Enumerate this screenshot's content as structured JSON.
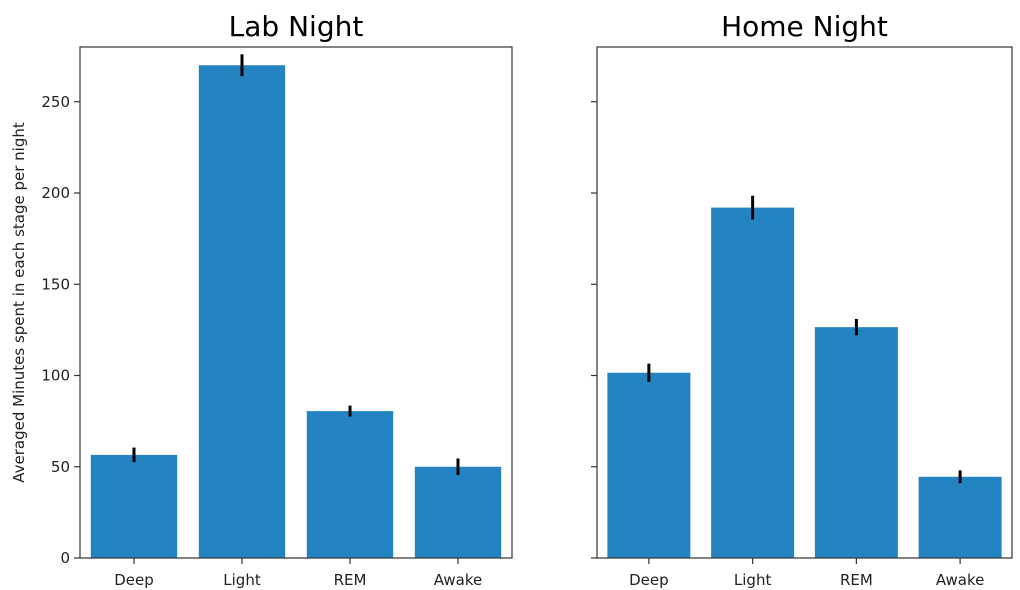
{
  "chart_data": [
    {
      "type": "bar",
      "title": "Lab Night",
      "categories": [
        "Deep",
        "Light",
        "REM",
        "Awake"
      ],
      "values": [
        56.5,
        270,
        80.5,
        50
      ],
      "errors": [
        4,
        6,
        3,
        4.5
      ],
      "ylabel": "Averaged Minutes spent in each stage per night",
      "ylim": [
        0,
        280
      ],
      "yticks": [
        0,
        50,
        100,
        150,
        200,
        250
      ],
      "ytick_labels_visible": true,
      "grid": false,
      "color": "#2484c1"
    },
    {
      "type": "bar",
      "title": "Home Night",
      "categories": [
        "Deep",
        "Light",
        "REM",
        "Awake"
      ],
      "values": [
        101.5,
        192,
        126.5,
        44.5
      ],
      "errors": [
        5,
        6.5,
        4.5,
        3.5
      ],
      "ylabel": "",
      "ylim": [
        0,
        280
      ],
      "yticks": [
        0,
        50,
        100,
        150,
        200,
        250
      ],
      "ytick_labels_visible": false,
      "grid": false,
      "color": "#2484c1"
    }
  ]
}
